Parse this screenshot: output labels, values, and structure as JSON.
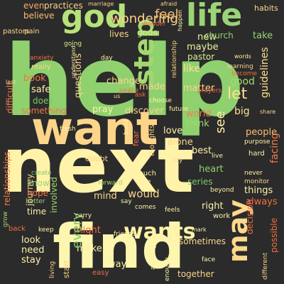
{
  "canvas": {
    "background": "#2b2b2b"
  },
  "words": [
    {
      "text": "help",
      "color": "#8fd16f"
    },
    {
      "text": "next",
      "color": "#fff3a9"
    },
    {
      "text": "want",
      "color": "#fdd58a"
    },
    {
      "text": "find",
      "color": "#fdf6ae"
    },
    {
      "text": "god",
      "color": "#b7e27a"
    },
    {
      "text": "life",
      "color": "#9ad477"
    },
    {
      "text": "step",
      "color": "#a3d86f"
    },
    {
      "text": "wants",
      "color": "#fff2a6"
    },
    {
      "text": "may",
      "color": "#fed88b"
    },
    {
      "text": "wondering",
      "color": "#fdd38a"
    },
    {
      "text": "feel",
      "color": "#fdbd6f"
    },
    {
      "text": "even",
      "color": "#fcae61"
    },
    {
      "text": "practices",
      "color": "#fdd08a"
    },
    {
      "text": "believe",
      "color": "#fdbd6f"
    },
    {
      "text": "lives",
      "color": "#fdd58a"
    },
    {
      "text": "gods",
      "color": "#d5ee8f"
    },
    {
      "text": "new",
      "color": "#e8f59b"
    },
    {
      "text": "church",
      "color": "#8fd16f"
    },
    {
      "text": "take",
      "color": "#9ad477"
    },
    {
      "text": "maybe",
      "color": "#e8f59b"
    },
    {
      "text": "pastor",
      "color": "#d5ee8f"
    },
    {
      "text": "like",
      "color": "#fee08b"
    },
    {
      "text": "good",
      "color": "#a3d86f"
    },
    {
      "text": "let",
      "color": "#fee08b"
    },
    {
      "text": "guidelines",
      "color": "#fee08b"
    },
    {
      "text": "facing",
      "color": "#f67c4a"
    },
    {
      "text": "people",
      "color": "#fdbd6f"
    },
    {
      "text": "big",
      "color": "#fee08b"
    },
    {
      "text": "matter",
      "color": "#fdd58a"
    },
    {
      "text": "book",
      "color": "#f57446"
    },
    {
      "text": "questions",
      "color": "#fdd58a"
    },
    {
      "text": "change",
      "color": "#fdd58a"
    },
    {
      "text": "made",
      "color": "#fdd58a"
    },
    {
      "text": "safe",
      "color": "#fff2a6"
    },
    {
      "text": "does",
      "color": "#7ccb6a"
    },
    {
      "text": "something",
      "color": "#f57446"
    },
    {
      "text": "pray",
      "color": "#fff2a6"
    },
    {
      "text": "discover",
      "color": "#fdd08a"
    },
    {
      "text": "world",
      "color": "#f67c4a"
    },
    {
      "text": "think",
      "color": "#a3d86f"
    },
    {
      "text": "love",
      "color": "#fff2a6"
    },
    {
      "text": "alone",
      "color": "#fdd58a"
    },
    {
      "text": "best",
      "color": "#fff2a6"
    },
    {
      "text": "see",
      "color": "#fff2a6"
    },
    {
      "text": "heart",
      "color": "#8fd16f"
    },
    {
      "text": "series",
      "color": "#7ccb6a"
    },
    {
      "text": "things",
      "color": "#fff2a6"
    },
    {
      "text": "always",
      "color": "#f46d43"
    },
    {
      "text": "right",
      "color": "#fff2a6"
    },
    {
      "text": "relationships",
      "color": "#f67c4a"
    },
    {
      "text": "difficult",
      "color": "#f67c4a"
    },
    {
      "text": "journey",
      "color": "#fdd58a"
    },
    {
      "text": "involved",
      "color": "#a3d86f"
    },
    {
      "text": "know",
      "color": "#9ad477"
    },
    {
      "text": "hope",
      "color": "#f57446"
    },
    {
      "text": "time",
      "color": "#fff2a6"
    },
    {
      "text": "mind",
      "color": "#fdd58a"
    },
    {
      "text": "would",
      "color": "#fdd58a"
    },
    {
      "text": "might",
      "color": "#f46d43"
    },
    {
      "text": "look",
      "color": "#fff2a6"
    },
    {
      "text": "need",
      "color": "#fff2a6"
    },
    {
      "text": "stay",
      "color": "#fff2a6"
    },
    {
      "text": "make",
      "color": "#fff2a6"
    },
    {
      "text": "every",
      "color": "#7ccb6a"
    },
    {
      "text": "way",
      "color": "#fff2a6"
    },
    {
      "text": "part",
      "color": "#fff2a6"
    },
    {
      "text": "sometimes",
      "color": "#fdd58a"
    },
    {
      "text": "together",
      "color": "#fdd58a"
    },
    {
      "text": "decision",
      "color": "#f46d43"
    },
    {
      "text": "possible",
      "color": "#f46d43"
    },
    {
      "text": "habits",
      "color": "#fdd58a"
    },
    {
      "text": "pastors",
      "color": "#fdd58a"
    },
    {
      "text": "pain",
      "color": "#fdd58a"
    },
    {
      "text": "wonder",
      "color": "#f46d43"
    },
    {
      "text": "really",
      "color": "#fdd58a"
    },
    {
      "text": "going",
      "color": "#d5ee8f"
    },
    {
      "text": "anxiety",
      "color": "#f46d43"
    },
    {
      "text": "peace",
      "color": "#f46d43"
    },
    {
      "text": "day",
      "color": "#fff2a6"
    },
    {
      "text": "become",
      "color": "#f46d43"
    },
    {
      "text": "prayers",
      "color": "#f46d43"
    },
    {
      "text": "learning",
      "color": "#fdd58a"
    },
    {
      "text": "relationship",
      "color": "#fdd58a"
    },
    {
      "text": "future",
      "color": "#fff2a6"
    },
    {
      "text": "ask",
      "color": "#f46d43"
    },
    {
      "text": "choose",
      "color": "#fff2a6"
    },
    {
      "text": "fresh",
      "color": "#fff2a6"
    },
    {
      "text": "build",
      "color": "#fff2a6"
    },
    {
      "text": "fear",
      "color": "#f46d43"
    },
    {
      "text": "thoughts",
      "color": "#fdd58a"
    },
    {
      "text": "doubt",
      "color": "#fdd58a"
    },
    {
      "text": "much",
      "color": "#fff2a6"
    },
    {
      "text": "true",
      "color": "#fff2a6"
    },
    {
      "text": "forward",
      "color": "#a3d86f"
    },
    {
      "text": "joy",
      "color": "#fdd58a"
    },
    {
      "text": "hard",
      "color": "#fff2a6"
    },
    {
      "text": "never",
      "color": "#fff2a6"
    },
    {
      "text": "monitor",
      "color": "#fdd58a"
    },
    {
      "text": "beyond",
      "color": "#fff2a6"
    },
    {
      "text": "create",
      "color": "#7ccb6a"
    },
    {
      "text": "better",
      "color": "#9ad477"
    },
    {
      "text": "carry",
      "color": "#fff2a6"
    },
    {
      "text": "say",
      "color": "#fff2a6"
    },
    {
      "text": "comes",
      "color": "#fff2a6"
    },
    {
      "text": "feels",
      "color": "#fff2a6"
    },
    {
      "text": "back",
      "color": "#f46d43"
    },
    {
      "text": "keep",
      "color": "#fff2a6"
    },
    {
      "text": "friends",
      "color": "#fff2a6"
    },
    {
      "text": "start",
      "color": "#fdd58a"
    },
    {
      "text": "living",
      "color": "#fdd58a"
    },
    {
      "text": "easy",
      "color": "#f46d43"
    },
    {
      "text": "enough",
      "color": "#fff2a6"
    },
    {
      "text": "face",
      "color": "#fff2a6"
    },
    {
      "text": "work",
      "color": "#fff2a6"
    },
    {
      "text": "different",
      "color": "#fdd58a"
    },
    {
      "text": "actually",
      "color": "#fff2a6"
    },
    {
      "text": "purpose",
      "color": "#fff2a6"
    },
    {
      "text": "marriage",
      "color": "#fdd58a"
    },
    {
      "text": "afraid",
      "color": "#fdd58a"
    },
    {
      "text": "grow",
      "color": "#a3d86f"
    },
    {
      "text": "words",
      "color": "#fff2a6"
    },
    {
      "text": "live",
      "color": "#fff2a6"
    },
    {
      "text": "share",
      "color": "#fdd58a"
    },
    {
      "text": "sense",
      "color": "#fff2a6"
    },
    {
      "text": "happen",
      "color": "#fff2a6"
    },
    {
      "text": "understand",
      "color": "#fff2a6"
    },
    {
      "text": "us",
      "color": "#fdd58a"
    },
    {
      "text": "mark",
      "color": "#fff2a6"
    },
    {
      "text": "last",
      "color": "#fdd58a"
    }
  ]
}
